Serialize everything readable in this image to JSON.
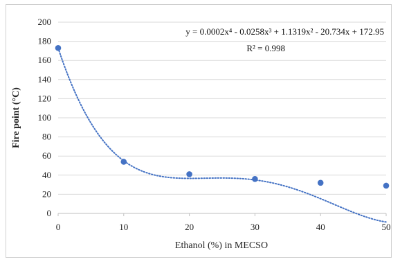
{
  "chart_data": {
    "type": "scatter",
    "title": "",
    "xlabel": "Ethanol (%) in MECSO",
    "ylabel": "Fire point (°C)",
    "xlim": [
      0,
      50
    ],
    "ylim": [
      0,
      200
    ],
    "xticks": [
      0,
      10,
      20,
      30,
      40,
      50
    ],
    "yticks": [
      0,
      20,
      40,
      60,
      80,
      100,
      120,
      140,
      160,
      180,
      200
    ],
    "grid": "horizontal",
    "legend": "none",
    "series": [
      {
        "x": [
          0,
          10,
          20,
          30,
          40,
          50
        ],
        "y": [
          173,
          54,
          41,
          36,
          32,
          29
        ],
        "color": "#4472C4"
      }
    ],
    "trendline": {
      "kind": "polynomial",
      "order": 4,
      "coefficients": [
        0.0002,
        -0.0258,
        1.1319,
        -20.734,
        172.95
      ],
      "style": "dotted",
      "color": "#4472C4"
    },
    "annotations": {
      "equation": "y = 0.0002x⁴ - 0.0258x³ + 1.1319x² - 20.734x + 172.95",
      "r_squared": "R² = 0.998"
    }
  }
}
